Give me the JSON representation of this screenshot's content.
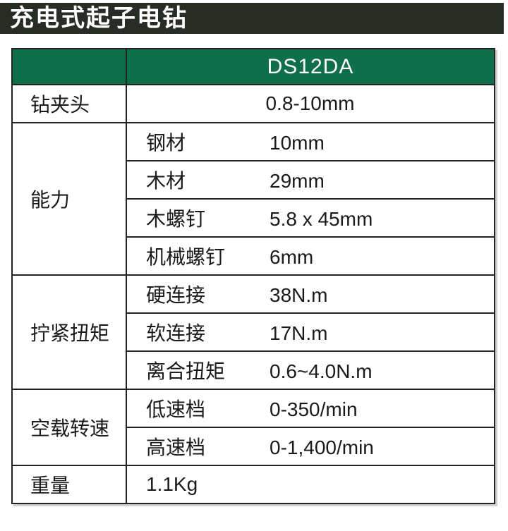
{
  "page_title": "充电式起子电钻",
  "colors": {
    "title_bar_bg": "#272d25",
    "header_bg": "#0e6f4a",
    "header_text": "#ffffff",
    "border": "#232323",
    "text": "#1a1a1a"
  },
  "table": {
    "model": "DS12DA",
    "sections": [
      {
        "label": "钻夹头",
        "rows": [
          {
            "sub": "",
            "value": "0.8-10mm"
          }
        ]
      },
      {
        "label": "能力",
        "rows": [
          {
            "sub": "钢材",
            "value": "10mm"
          },
          {
            "sub": "木材",
            "value": "29mm"
          },
          {
            "sub": "木螺钉",
            "value": "5.8 x 45mm"
          },
          {
            "sub": "机械螺钉",
            "value": "6mm"
          }
        ]
      },
      {
        "label": "拧紧扭矩",
        "rows": [
          {
            "sub": "硬连接",
            "value": "38N.m"
          },
          {
            "sub": "软连接",
            "value": "17N.m"
          },
          {
            "sub": "离合扭矩",
            "value": "0.6~4.0N.m"
          }
        ]
      },
      {
        "label": "空载转速",
        "rows": [
          {
            "sub": "低速档",
            "value": "0-350/min"
          },
          {
            "sub": "高速档",
            "value": "0-1,400/min"
          }
        ]
      },
      {
        "label": "重量",
        "rows": [
          {
            "sub": "",
            "value": "1.1Kg"
          }
        ]
      }
    ]
  }
}
